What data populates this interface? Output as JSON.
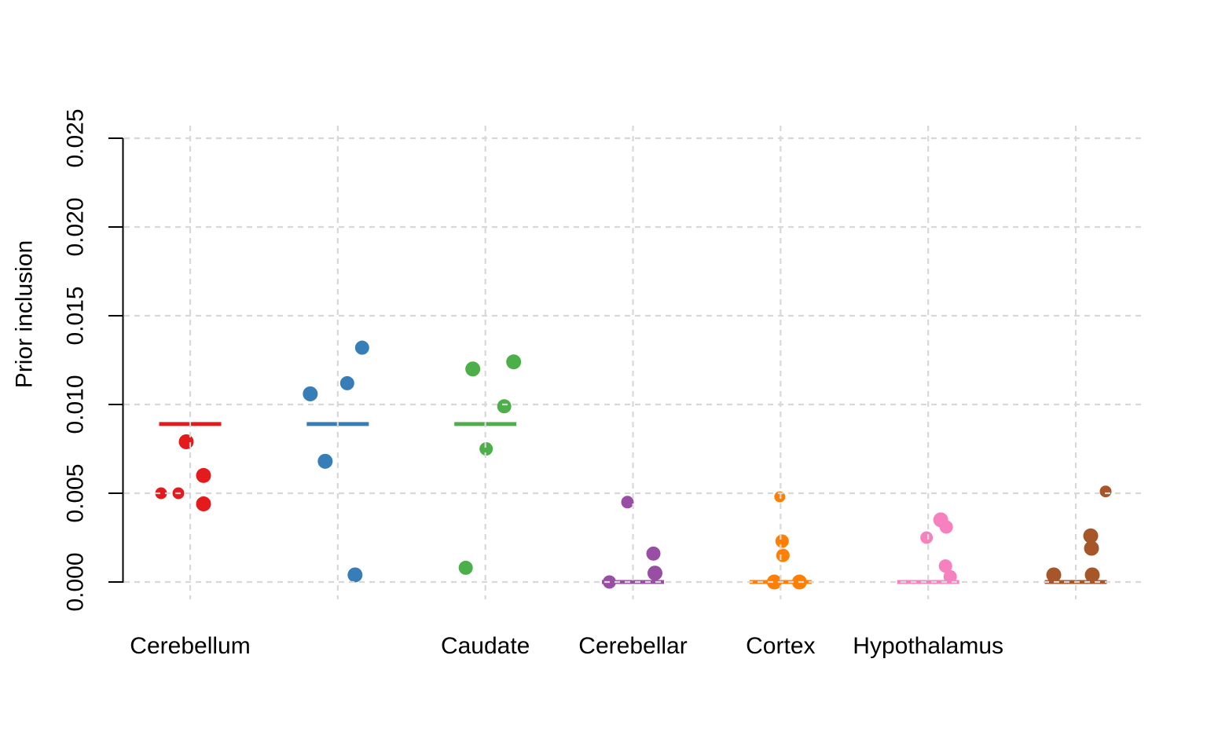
{
  "figure": {
    "title": "",
    "ylabel": "Prior inclusion",
    "background_color": "#ffffff",
    "axis_color": "#000000",
    "grid_color": "#d8d8d8",
    "text_color": "#000000"
  },
  "chart_data": {
    "type": "scatter",
    "subtype": "jittered-strip-plot-with-group-mean-lines",
    "title": "",
    "xlabel": "",
    "ylabel": "Prior inclusion",
    "ylim": [
      0,
      0.025
    ],
    "y_ticks": [
      0.0,
      0.005,
      0.01,
      0.015,
      0.02,
      0.025
    ],
    "y_tick_labels": [
      "0.000",
      "0.005",
      "0.010",
      "0.015",
      "0.020",
      "0.025"
    ],
    "y_tick_label_rotation": 90,
    "grid": "dashed gridlines both directions, drawn over the data points",
    "legend_position": "none",
    "groups": [
      {
        "label": "Cerebellum",
        "color": "#E41A1C",
        "mean_line": 0.0089,
        "points": [
          {
            "value": 0.0079,
            "jitter": -5,
            "r": 9.5
          },
          {
            "value": 0.006,
            "jitter": 17,
            "r": 9.5
          },
          {
            "value": 0.005,
            "jitter": -37,
            "r": 7.5
          },
          {
            "value": 0.005,
            "jitter": -15,
            "r": 7.5
          },
          {
            "value": 0.0044,
            "jitter": 17,
            "r": 9.5
          }
        ]
      },
      {
        "label": "",
        "color": "#377EB8",
        "mean_line": 0.0089,
        "points": [
          {
            "value": 0.0132,
            "jitter": 31,
            "r": 9
          },
          {
            "value": 0.0112,
            "jitter": 12,
            "r": 9
          },
          {
            "value": 0.0106,
            "jitter": -35,
            "r": 9.5
          },
          {
            "value": 0.0068,
            "jitter": -16,
            "r": 9.5
          },
          {
            "value": 0.0004,
            "jitter": 22,
            "r": 9.5
          }
        ]
      },
      {
        "label": "Caudate",
        "color": "#4DAF4A",
        "mean_line": 0.0089,
        "points": [
          {
            "value": 0.0124,
            "jitter": 36,
            "r": 9.5
          },
          {
            "value": 0.012,
            "jitter": -16,
            "r": 9.5
          },
          {
            "value": 0.0099,
            "jitter": 24,
            "r": 9
          },
          {
            "value": 0.0075,
            "jitter": 1,
            "r": 8.5
          },
          {
            "value": 0.0008,
            "jitter": -25,
            "r": 9
          }
        ]
      },
      {
        "label": "Cerebellar",
        "color": "#984EA3",
        "mean_line": 0.0,
        "points": [
          {
            "value": 0.0045,
            "jitter": -7,
            "r": 8
          },
          {
            "value": 0.0016,
            "jitter": 26,
            "r": 9
          },
          {
            "value": 0.0005,
            "jitter": 28,
            "r": 9.5
          },
          {
            "value": 0.0,
            "jitter": -30,
            "r": 8.5
          }
        ]
      },
      {
        "label": "Cortex",
        "color": "#FF7F00",
        "mean_line": 0.0,
        "points": [
          {
            "value": 0.0048,
            "jitter": -1,
            "r": 7
          },
          {
            "value": 0.0023,
            "jitter": 2,
            "r": 8.5
          },
          {
            "value": 0.0015,
            "jitter": 3,
            "r": 8.5
          },
          {
            "value": 0.0,
            "jitter": -8,
            "r": 9.5
          },
          {
            "value": 0.0,
            "jitter": 24,
            "r": 9.5
          }
        ]
      },
      {
        "label": "Hypothalamus",
        "color": "#F781BF",
        "mean_line": 0.0,
        "points": [
          {
            "value": 0.0035,
            "jitter": 16,
            "r": 9.5
          },
          {
            "value": 0.0031,
            "jitter": 23,
            "r": 8.5
          },
          {
            "value": 0.0025,
            "jitter": -2,
            "r": 8
          },
          {
            "value": 0.0009,
            "jitter": 22,
            "r": 8.5
          },
          {
            "value": 0.0003,
            "jitter": 28,
            "r": 8.5
          }
        ]
      },
      {
        "label": "",
        "color": "#A65628",
        "mean_line": 0.0,
        "points": [
          {
            "value": 0.0051,
            "jitter": 38,
            "r": 7.5
          },
          {
            "value": 0.0026,
            "jitter": 19,
            "r": 9.5
          },
          {
            "value": 0.0019,
            "jitter": 20,
            "r": 9.5
          },
          {
            "value": 0.0004,
            "jitter": -28,
            "r": 9.5
          },
          {
            "value": 0.0004,
            "jitter": 21,
            "r": 9.5
          }
        ]
      }
    ]
  }
}
